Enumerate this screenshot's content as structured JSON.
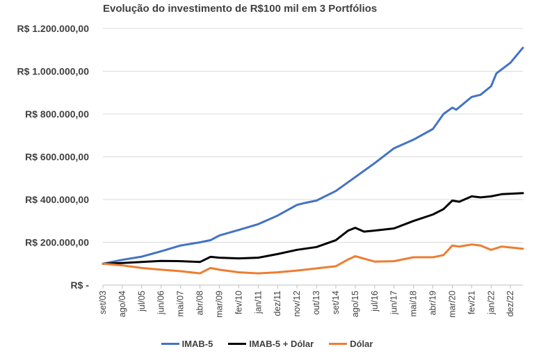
{
  "chart_data": {
    "type": "line",
    "title": "Evolução do investimento de R$100 mil em 3 Portfólios",
    "y_tick_labels": [
      "R$ -",
      "R$ 200.000,00",
      "R$ 400.000,00",
      "R$ 600.000,00",
      "R$ 800.000,00",
      "R$ 1.000.000,00",
      "R$ 1.200.000,00"
    ],
    "y_tick_values": [
      0,
      200000,
      400000,
      600000,
      800000,
      1000000,
      1200000
    ],
    "ylim": [
      0,
      1200000
    ],
    "xlim": [
      2003.667,
      2023.5
    ],
    "x_tick_labels": [
      "set/03",
      "ago/04",
      "jul/05",
      "jun/06",
      "mai/07",
      "abr/08",
      "mar/09",
      "fev/10",
      "jan/11",
      "dez/11",
      "nov/12",
      "out/13",
      "set/14",
      "ago/15",
      "jul/16",
      "jun/17",
      "mai/18",
      "abr/19",
      "mar/20",
      "fev/21",
      "jan/22",
      "dez/22"
    ],
    "x_tick_values": [
      2003.667,
      2004.583,
      2005.5,
      2006.417,
      2007.333,
      2008.25,
      2009.167,
      2010.083,
      2011.0,
      2011.917,
      2012.833,
      2013.75,
      2014.667,
      2015.583,
      2016.5,
      2017.417,
      2018.333,
      2019.25,
      2020.167,
      2021.083,
      2022.0,
      2022.917
    ],
    "grid": true,
    "legend_position": "bottom",
    "series": [
      {
        "name": "IMAB-5",
        "color": "#4472C4",
        "points": [
          [
            2003.667,
            100000
          ],
          [
            2004.583,
            118000
          ],
          [
            2005.5,
            133000
          ],
          [
            2006.417,
            158000
          ],
          [
            2007.333,
            185000
          ],
          [
            2008.25,
            200000
          ],
          [
            2008.75,
            210000
          ],
          [
            2009.167,
            232000
          ],
          [
            2010.083,
            258000
          ],
          [
            2011.0,
            285000
          ],
          [
            2011.917,
            325000
          ],
          [
            2012.833,
            375000
          ],
          [
            2013.25,
            385000
          ],
          [
            2013.75,
            395000
          ],
          [
            2014.667,
            440000
          ],
          [
            2015.583,
            505000
          ],
          [
            2016.5,
            570000
          ],
          [
            2017.417,
            640000
          ],
          [
            2018.333,
            680000
          ],
          [
            2019.25,
            730000
          ],
          [
            2019.75,
            800000
          ],
          [
            2020.167,
            830000
          ],
          [
            2020.35,
            820000
          ],
          [
            2021.083,
            880000
          ],
          [
            2021.5,
            890000
          ],
          [
            2022.0,
            930000
          ],
          [
            2022.25,
            990000
          ],
          [
            2022.917,
            1040000
          ],
          [
            2023.5,
            1110000
          ]
        ]
      },
      {
        "name": "IMAB-5 + Dólar",
        "color": "#000000",
        "points": [
          [
            2003.667,
            100000
          ],
          [
            2004.583,
            103000
          ],
          [
            2005.5,
            108000
          ],
          [
            2006.417,
            113000
          ],
          [
            2007.333,
            112000
          ],
          [
            2008.25,
            108000
          ],
          [
            2008.75,
            132000
          ],
          [
            2009.167,
            128000
          ],
          [
            2010.083,
            125000
          ],
          [
            2011.0,
            128000
          ],
          [
            2011.917,
            145000
          ],
          [
            2012.833,
            165000
          ],
          [
            2013.75,
            178000
          ],
          [
            2014.667,
            210000
          ],
          [
            2015.25,
            255000
          ],
          [
            2015.583,
            268000
          ],
          [
            2016.0,
            250000
          ],
          [
            2016.5,
            255000
          ],
          [
            2017.417,
            265000
          ],
          [
            2018.333,
            300000
          ],
          [
            2019.25,
            330000
          ],
          [
            2019.75,
            355000
          ],
          [
            2020.167,
            395000
          ],
          [
            2020.5,
            390000
          ],
          [
            2021.083,
            415000
          ],
          [
            2021.5,
            410000
          ],
          [
            2022.0,
            415000
          ],
          [
            2022.5,
            425000
          ],
          [
            2023.5,
            430000
          ]
        ]
      },
      {
        "name": "Dólar",
        "color": "#ED7D31",
        "points": [
          [
            2003.667,
            100000
          ],
          [
            2004.583,
            92000
          ],
          [
            2005.5,
            80000
          ],
          [
            2006.417,
            72000
          ],
          [
            2007.333,
            65000
          ],
          [
            2008.25,
            55000
          ],
          [
            2008.75,
            80000
          ],
          [
            2009.167,
            72000
          ],
          [
            2010.083,
            60000
          ],
          [
            2011.0,
            55000
          ],
          [
            2011.917,
            60000
          ],
          [
            2012.833,
            68000
          ],
          [
            2013.75,
            78000
          ],
          [
            2014.667,
            88000
          ],
          [
            2015.25,
            120000
          ],
          [
            2015.583,
            135000
          ],
          [
            2016.5,
            110000
          ],
          [
            2017.417,
            112000
          ],
          [
            2018.333,
            130000
          ],
          [
            2019.25,
            130000
          ],
          [
            2019.75,
            140000
          ],
          [
            2020.167,
            185000
          ],
          [
            2020.5,
            180000
          ],
          [
            2021.083,
            190000
          ],
          [
            2021.5,
            185000
          ],
          [
            2022.0,
            165000
          ],
          [
            2022.5,
            180000
          ],
          [
            2023.5,
            170000
          ]
        ]
      }
    ]
  }
}
